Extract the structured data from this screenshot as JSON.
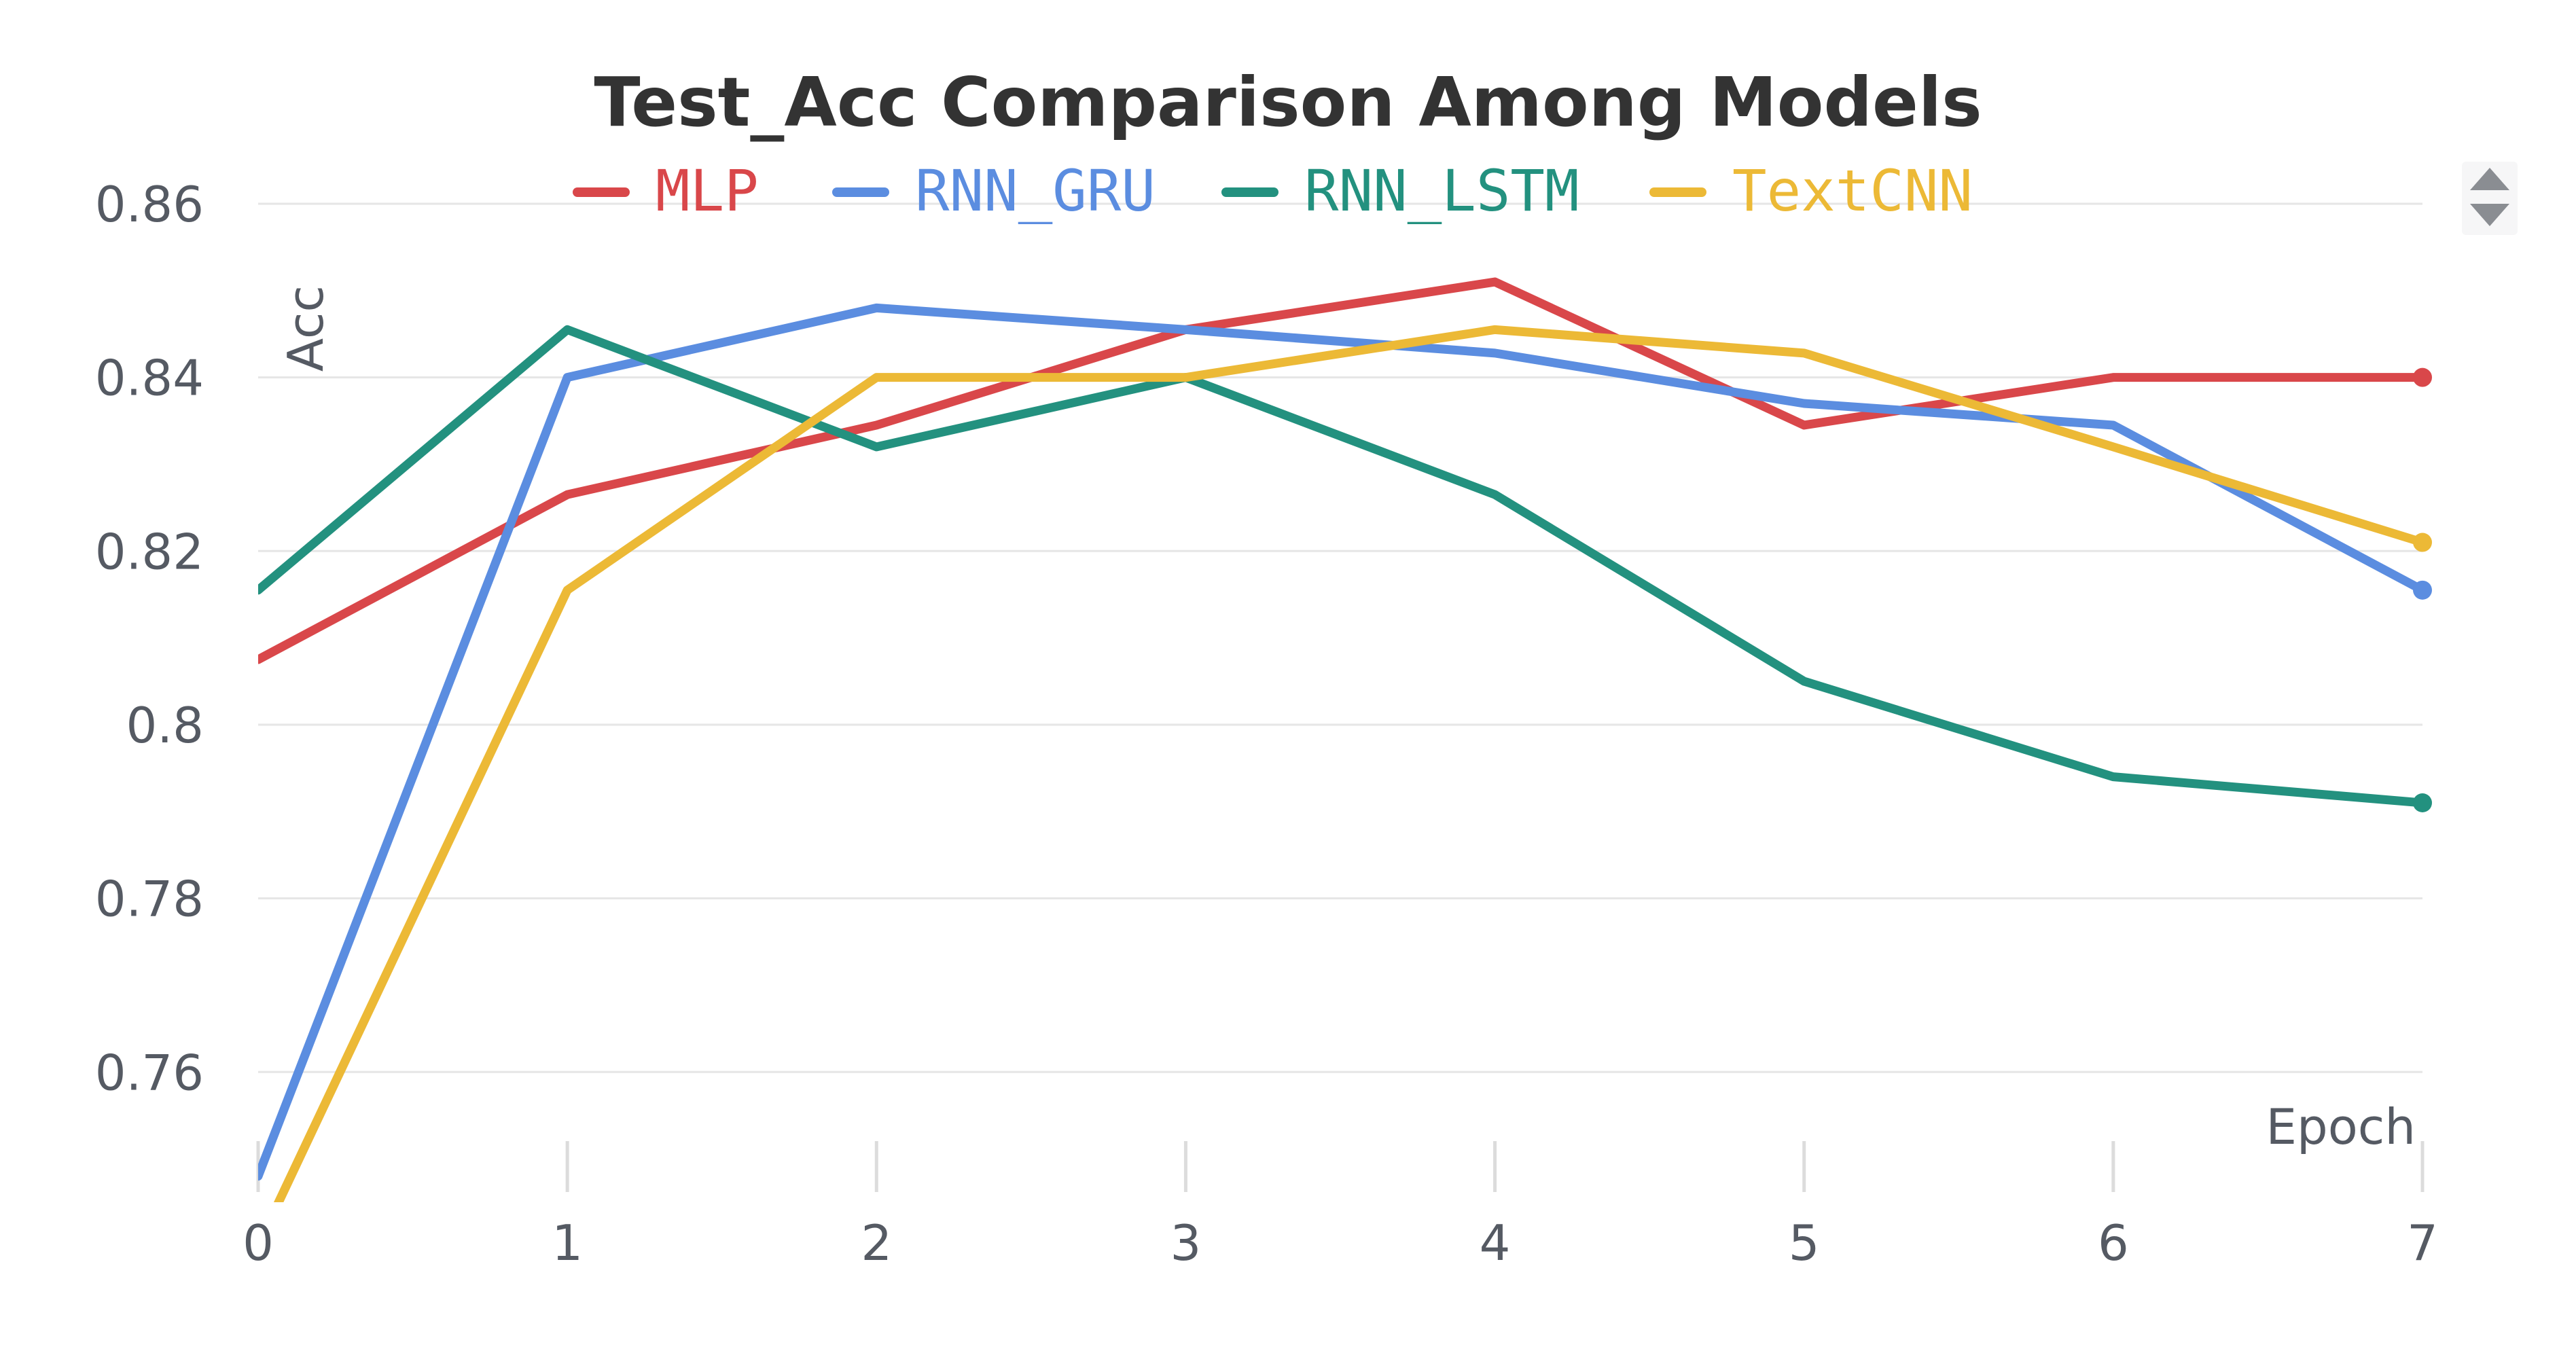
{
  "chart_data": {
    "type": "line",
    "title": "Test_Acc Comparison Among Models",
    "xlabel": "Epoch",
    "ylabel": "Acc",
    "x": [
      0,
      1,
      2,
      3,
      4,
      5,
      6,
      7
    ],
    "xlim": [
      0,
      7
    ],
    "ylim": [
      0.745,
      0.86
    ],
    "yticks": [
      0.76,
      0.78,
      0.8,
      0.82,
      0.84,
      0.86
    ],
    "ytick_labels": [
      "0.76",
      "0.78",
      "0.8",
      "0.82",
      "0.84",
      "0.86"
    ],
    "xtick_labels": [
      "0",
      "1",
      "2",
      "3",
      "4",
      "5",
      "6",
      "7"
    ],
    "grid": "horizontal",
    "legend_position": "top",
    "series": [
      {
        "name": "MLP",
        "color": "#d9474a",
        "values": [
          0.8075,
          0.8265,
          0.8345,
          0.8455,
          0.851,
          0.8345,
          0.84,
          0.84
        ]
      },
      {
        "name": "RNN_GRU",
        "color": "#5b8de0",
        "values": [
          0.748,
          0.84,
          0.848,
          0.8455,
          0.8428,
          0.837,
          0.8345,
          0.8155
        ]
      },
      {
        "name": "RNN_LSTM",
        "color": "#23917f",
        "values": [
          0.8155,
          0.8455,
          0.832,
          0.84,
          0.8265,
          0.805,
          0.794,
          0.791
        ]
      },
      {
        "name": "TextCNN",
        "color": "#ecb936",
        "values": [
          0.74,
          0.8155,
          0.84,
          0.84,
          0.8455,
          0.8428,
          0.832,
          0.821
        ]
      }
    ]
  },
  "scroll_arrows": {
    "up_icon": "triangle-up-icon",
    "down_icon": "triangle-down-icon",
    "color": "#8a8d92"
  }
}
